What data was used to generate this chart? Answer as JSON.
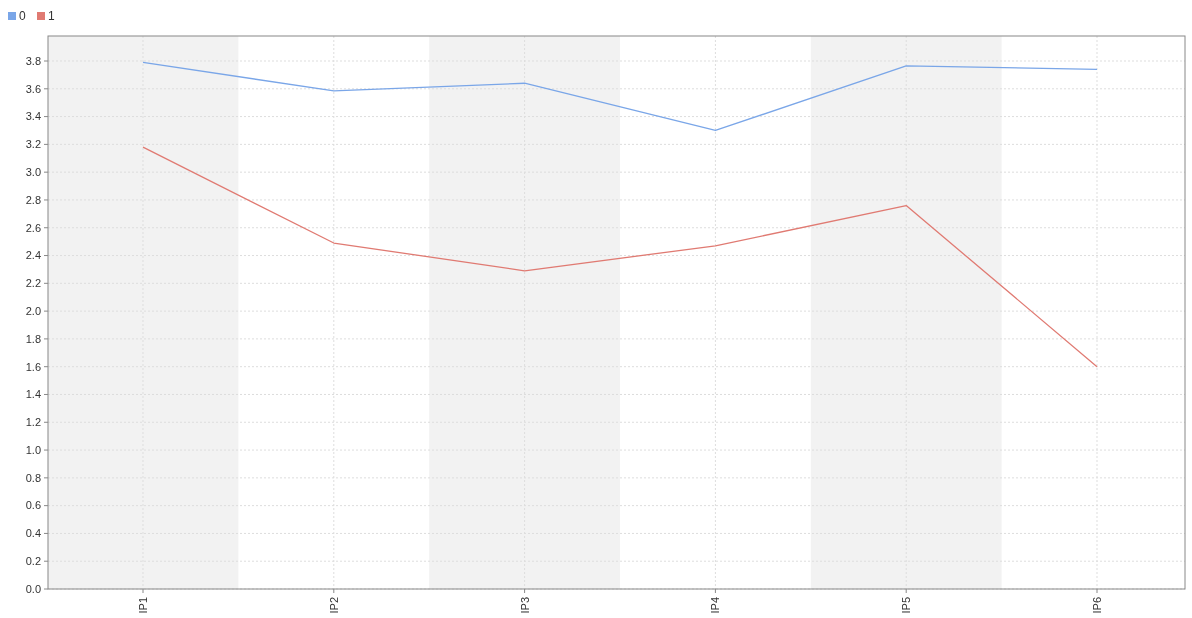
{
  "chart_data": {
    "type": "line",
    "categories": [
      "IP1",
      "IP2",
      "IP3",
      "IP4",
      "IP5",
      "IP6"
    ],
    "series": [
      {
        "name": "0",
        "color": "#7aa6e8",
        "values": [
          3.79,
          3.585,
          3.64,
          3.3,
          3.765,
          3.74
        ]
      },
      {
        "name": "1",
        "color": "#e07a72",
        "values": [
          3.18,
          2.49,
          2.29,
          2.47,
          2.76,
          1.6
        ]
      }
    ],
    "ylim": [
      0,
      3.98
    ],
    "yticks": [
      {
        "value": 0,
        "label": "0.0"
      },
      {
        "value": 0.2,
        "label": "0.2"
      },
      {
        "value": 0.4,
        "label": "0.4"
      },
      {
        "value": 0.6,
        "label": "0.6"
      },
      {
        "value": 0.8,
        "label": "0.8"
      },
      {
        "value": 1,
        "label": "1.0"
      },
      {
        "value": 1.2,
        "label": "1.2"
      },
      {
        "value": 1.4,
        "label": "1.4"
      },
      {
        "value": 1.6,
        "label": "1.6"
      },
      {
        "value": 1.8,
        "label": "1.8"
      },
      {
        "value": 2,
        "label": "2.0"
      },
      {
        "value": 2.2,
        "label": "2.2"
      },
      {
        "value": 2.4,
        "label": "2.4"
      },
      {
        "value": 2.6,
        "label": "2.6"
      },
      {
        "value": 2.8,
        "label": "2.8"
      },
      {
        "value": 3,
        "label": "3.0"
      },
      {
        "value": 3.2,
        "label": "3.2"
      },
      {
        "value": 3.4,
        "label": "3.4"
      },
      {
        "value": 3.6,
        "label": "3.6"
      },
      {
        "value": 3.8,
        "label": "3.8"
      }
    ],
    "grid": true,
    "legend": "top left",
    "marker": "none",
    "line_style": "solid"
  }
}
